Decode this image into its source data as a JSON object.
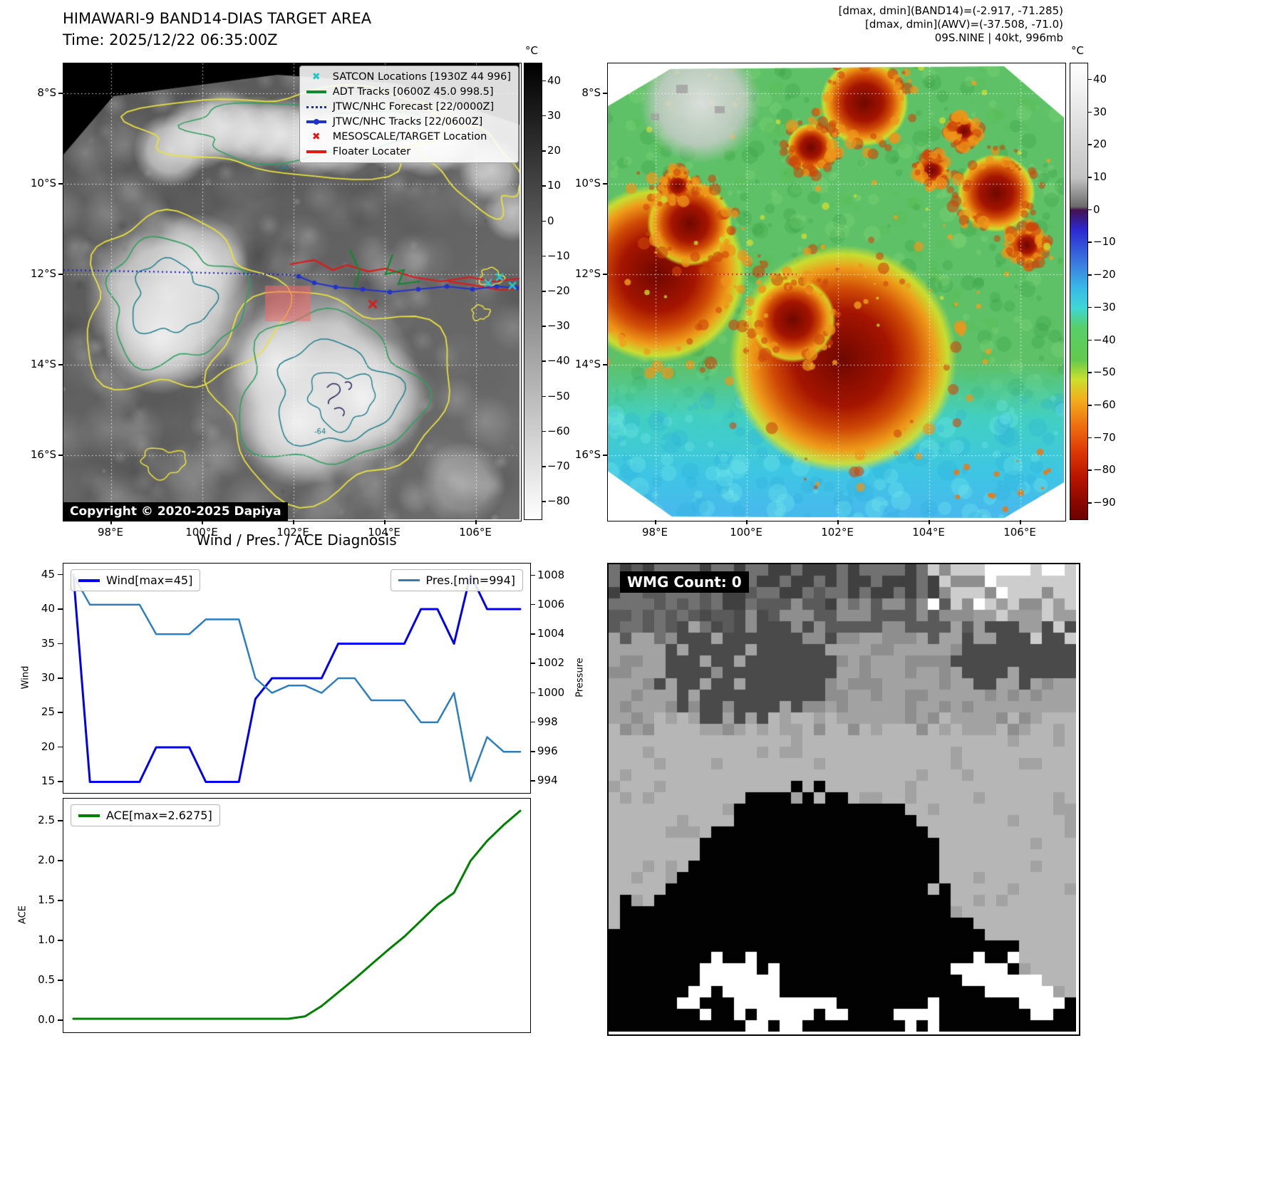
{
  "band14_panel": {
    "title": "HIMAWARI-9 BAND14-DIAS TARGET AREA",
    "subtitle": "Time: 2025/12/22 06:35:00Z",
    "copyright": "Copyright © 2020-2025 Dapiya",
    "lat_ticks": [
      "8°S",
      "10°S",
      "12°S",
      "14°S",
      "16°S"
    ],
    "lon_ticks": [
      "98°E",
      "100°E",
      "102°E",
      "104°E",
      "106°E"
    ],
    "colorbar": {
      "unit": "°C",
      "vmax": 45,
      "vmin": -85,
      "ticks": [
        "40",
        "30",
        "20",
        "10",
        "0",
        "−10",
        "−20",
        "−30",
        "−40",
        "−50",
        "−60",
        "−70",
        "−80"
      ],
      "stops": [
        {
          "v": 45,
          "c": "#000000"
        },
        {
          "v": -85,
          "c": "#ffffff"
        }
      ]
    },
    "legend_items": [
      {
        "label": "SATCON Locations [1930Z 44 996]",
        "marker": "x",
        "color": "#29c5c5"
      },
      {
        "label": "ADT Tracks [0600Z 45.0 998.5]",
        "marker": "line",
        "color": "#128a2e"
      },
      {
        "label": "JTWC/NHC Forecast [22/0000Z]",
        "marker": "dotted",
        "color": "#2222cc"
      },
      {
        "label": "JTWC/NHC Tracks [22/0600Z]",
        "marker": "line-marker",
        "color": "#2233cc"
      },
      {
        "label": "MESOSCALE/TARGET Location",
        "marker": "x",
        "color": "#e01818"
      },
      {
        "label": "Floater Locater",
        "marker": "line",
        "color": "#e01818"
      }
    ]
  },
  "awv_panel": {
    "header_lines": [
      "[dmax, dmin](BAND14)=(-2.917, -71.285)",
      "[dmax, dmin](AWV)=(-37.508, -71.0)",
      "09S.NINE | 40kt, 996mb"
    ],
    "lat_ticks": [
      "8°S",
      "10°S",
      "12°S",
      "14°S",
      "16°S"
    ],
    "lon_ticks": [
      "98°E",
      "100°E",
      "102°E",
      "104°E",
      "106°E"
    ],
    "colorbar": {
      "unit": "°C",
      "vmax": 45,
      "vmin": -95,
      "ticks": [
        "40",
        "30",
        "20",
        "10",
        "0",
        "−10",
        "−20",
        "−30",
        "−40",
        "−50",
        "−60",
        "−70",
        "−80",
        "−90"
      ],
      "stops": [
        {
          "v": 45,
          "c": "#ffffff"
        },
        {
          "v": 10,
          "c": "#c4c4c4"
        },
        {
          "v": 1,
          "c": "#6a6a6a"
        },
        {
          "v": 0,
          "c": "#45104f"
        },
        {
          "v": -6,
          "c": "#2b28d0"
        },
        {
          "v": -16,
          "c": "#3a77e0"
        },
        {
          "v": -24,
          "c": "#39b9e6"
        },
        {
          "v": -30,
          "c": "#3fd6d6"
        },
        {
          "v": -36,
          "c": "#57cf6a"
        },
        {
          "v": -46,
          "c": "#63c94e"
        },
        {
          "v": -52,
          "c": "#cadf2e"
        },
        {
          "v": -58,
          "c": "#f2b01d"
        },
        {
          "v": -66,
          "c": "#ee7011"
        },
        {
          "v": -74,
          "c": "#dd3a05"
        },
        {
          "v": -82,
          "c": "#b81400"
        },
        {
          "v": -95,
          "c": "#6b0000"
        }
      ]
    }
  },
  "diagnosis": {
    "title": "Wind / Pres. / ACE Diagnosis"
  },
  "wmg_panel": {
    "label": "WMG Count: 0"
  },
  "chart_data": [
    {
      "type": "line",
      "title": "Wind / Pres. / ACE Diagnosis",
      "left_axis": {
        "label": "Wind",
        "ticks": [
          "15",
          "20",
          "25",
          "30",
          "35",
          "40",
          "45"
        ],
        "lim": [
          13.4,
          46.6
        ]
      },
      "right_axis": {
        "label": "Pressure",
        "ticks": [
          "994",
          "996",
          "998",
          "1000",
          "1002",
          "1004",
          "1006",
          "1008"
        ],
        "lim": [
          993.2,
          1008.8
        ]
      },
      "legend_position": "wind top-left, pressure top-right",
      "series": [
        {
          "name": "Wind[max=45]",
          "axis": "left",
          "color": "#0000ee",
          "linewidth": 3,
          "values": [
            45,
            15,
            15,
            15,
            15,
            20,
            20,
            20,
            15,
            15,
            15,
            27,
            30,
            30,
            30,
            30,
            35,
            35,
            35,
            35,
            35,
            40,
            40,
            35,
            45,
            40,
            40,
            40
          ]
        },
        {
          "name": "Pres.[min=994]",
          "axis": "right",
          "color": "#2e7ebc",
          "linewidth": 2.5,
          "values": [
            1008,
            1006,
            1006,
            1006,
            1006,
            1004,
            1004,
            1004,
            1005,
            1005,
            1005,
            1001,
            1000,
            1000.5,
            1000.5,
            1000,
            1001,
            1001,
            999.5,
            999.5,
            999.5,
            998,
            998,
            1000,
            994,
            997,
            996,
            996
          ]
        }
      ]
    },
    {
      "type": "line",
      "left_axis": {
        "label": "ACE",
        "ticks": [
          "0.0",
          "0.5",
          "1.0",
          "1.5",
          "2.0",
          "2.5"
        ],
        "lim": [
          -0.15,
          2.78
        ]
      },
      "legend_position": "top-left",
      "series": [
        {
          "name": "ACE[max=2.6275]",
          "axis": "left",
          "color": "#008000",
          "linewidth": 3,
          "values": [
            0.02,
            0.02,
            0.02,
            0.02,
            0.02,
            0.02,
            0.02,
            0.02,
            0.02,
            0.02,
            0.02,
            0.02,
            0.02,
            0.02,
            0.05,
            0.18,
            0.35,
            0.52,
            0.7,
            0.88,
            1.05,
            1.25,
            1.45,
            1.6,
            2.0,
            2.25,
            2.45,
            2.6275
          ]
        }
      ]
    }
  ]
}
